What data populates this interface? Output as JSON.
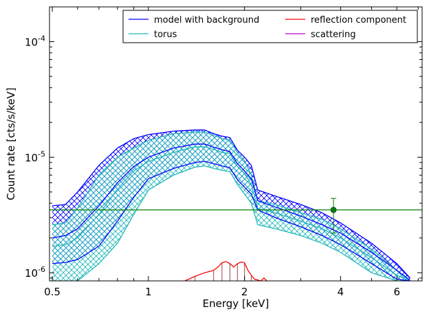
{
  "chart_data": {
    "type": "line",
    "xlabel": "Energy [keV]",
    "ylabel": "Count rate [cts/s/keV]",
    "xscale": "log",
    "yscale": "log",
    "xlim": [
      0.49,
      7.2
    ],
    "ylim": [
      8.5e-07,
      0.0002
    ],
    "x_ticks": [
      {
        "value": 0.5,
        "label": "0.5"
      },
      {
        "value": 1,
        "label": "1"
      },
      {
        "value": 2,
        "label": "2"
      },
      {
        "value": 4,
        "label": "4"
      },
      {
        "value": 6,
        "label": "6"
      }
    ],
    "y_ticks": [
      {
        "value": 1e-06,
        "base": "10",
        "exp": "-6"
      },
      {
        "value": 1e-05,
        "base": "10",
        "exp": "-5"
      },
      {
        "value": 0.0001,
        "base": "10",
        "exp": "-4"
      }
    ],
    "legend_position": "top",
    "colors": {
      "model": "#0000ff",
      "torus": "#20b8b8",
      "reflection": "#ff0000",
      "scattering": "#c000c0",
      "data": "#008000"
    },
    "series": [
      {
        "name": "model with background",
        "color": "#0000ff",
        "x": [
          0.5,
          0.55,
          0.6,
          0.7,
          0.8,
          0.9,
          1.0,
          1.2,
          1.4,
          1.5,
          1.6,
          1.7,
          1.8,
          1.9,
          2.0,
          2.1,
          2.2,
          2.5,
          3.0,
          3.5,
          4.0,
          5.0,
          6.0,
          6.6
        ],
        "upper": [
          3.8e-06,
          3.9e-06,
          5e-06,
          8.5e-06,
          1.2e-05,
          1.45e-05,
          1.57e-05,
          1.68e-05,
          1.72e-05,
          1.72e-05,
          1.6e-05,
          1.52e-05,
          1.48e-05,
          1.15e-05,
          1e-05,
          8.5e-06,
          5.2e-06,
          4.6e-06,
          3.9e-06,
          3.3e-06,
          2.7e-06,
          1.8e-06,
          1.2e-06,
          9e-07
        ],
        "median": [
          2e-06,
          2.1e-06,
          2.4e-06,
          3.8e-06,
          6e-06,
          8.3e-06,
          1e-05,
          1.2e-05,
          1.3e-05,
          1.3e-05,
          1.22e-05,
          1.16e-05,
          1.12e-05,
          8.8e-06,
          7.6e-06,
          6.5e-06,
          4.2e-06,
          3.7e-06,
          3.1e-06,
          2.6e-06,
          2.2e-06,
          1.5e-06,
          1.05e-06,
          8.6e-07
        ],
        "lower": [
          1.2e-06,
          1.23e-06,
          1.3e-06,
          1.7e-06,
          2.8e-06,
          4.5e-06,
          6.5e-06,
          8e-06,
          9e-06,
          9.2e-06,
          8.8e-06,
          8.4e-06,
          8.1e-06,
          6.4e-06,
          5.5e-06,
          4.8e-06,
          3.5e-06,
          3e-06,
          2.5e-06,
          2.1e-06,
          1.75e-06,
          1.2e-06,
          8.8e-07,
          8.5e-07
        ]
      },
      {
        "name": "torus",
        "color": "#20b8b8",
        "x": [
          0.5,
          0.55,
          0.6,
          0.7,
          0.8,
          0.9,
          1.0,
          1.2,
          1.4,
          1.5,
          1.6,
          1.7,
          1.8,
          1.9,
          2.0,
          2.1,
          2.2,
          2.5,
          3.0,
          3.5,
          4.0,
          5.0,
          6.0,
          6.6
        ],
        "upper": [
          2.6e-06,
          2.7e-06,
          3.6e-06,
          7e-06,
          1e-05,
          1.2e-05,
          1.4e-05,
          1.6e-05,
          1.65e-05,
          1.65e-05,
          1.55e-05,
          1.45e-05,
          1.4e-05,
          1.1e-05,
          9.3e-06,
          7e-06,
          4.2e-06,
          3.9e-06,
          3.3e-06,
          2.9e-06,
          2.4e-06,
          1.6e-06,
          1.05e-06,
          8.5e-07
        ],
        "median": [
          1.7e-06,
          1.75e-06,
          2e-06,
          3.2e-06,
          5.3e-06,
          7.6e-06,
          9.2e-06,
          1.1e-05,
          1.23e-05,
          1.23e-05,
          1.17e-05,
          1.1e-05,
          1.07e-05,
          8.3e-06,
          7.2e-06,
          5.8e-06,
          3.6e-06,
          3.3e-06,
          2.8e-06,
          2.4e-06,
          2e-06,
          1.35e-06,
          9.5e-07,
          8.5e-07
        ],
        "lower": [
          8.5e-07,
          8.5e-07,
          8.5e-07,
          1.2e-06,
          1.8e-06,
          3.2e-06,
          5.2e-06,
          7e-06,
          8.2e-06,
          8.4e-06,
          8e-06,
          7.7e-06,
          7.5e-06,
          5.8e-06,
          4.8e-06,
          4e-06,
          2.6e-06,
          2.4e-06,
          2.1e-06,
          1.8e-06,
          1.5e-06,
          1e-06,
          8.5e-07,
          8.5e-07
        ]
      },
      {
        "name": "reflection component",
        "color": "#ff0000",
        "x": [
          1.3,
          1.4,
          1.5,
          1.6,
          1.65,
          1.7,
          1.75,
          1.8,
          1.85,
          1.9,
          1.95,
          2.0,
          2.05,
          2.1,
          2.15,
          2.25,
          2.3,
          2.35
        ],
        "y": [
          8.5e-07,
          9.3e-07,
          1e-06,
          1.05e-06,
          1.12e-06,
          1.22e-06,
          1.25e-06,
          1.2e-06,
          1.12e-06,
          1.2e-06,
          1.24e-06,
          1.22e-06,
          1.05e-06,
          9.5e-07,
          8.8e-07,
          8.5e-07,
          9e-07,
          8.5e-07
        ]
      },
      {
        "name": "scattering",
        "color": "#c000c0",
        "x": [],
        "y": []
      }
    ],
    "background_level": {
      "color": "#008000",
      "y": 3.5e-06,
      "x": [
        0.49,
        7.2
      ]
    },
    "data_point": {
      "color": "#008000",
      "x": 3.8,
      "y": 3.5e-06,
      "y_err": [
        2.2e-06,
        4.4e-06
      ]
    }
  }
}
